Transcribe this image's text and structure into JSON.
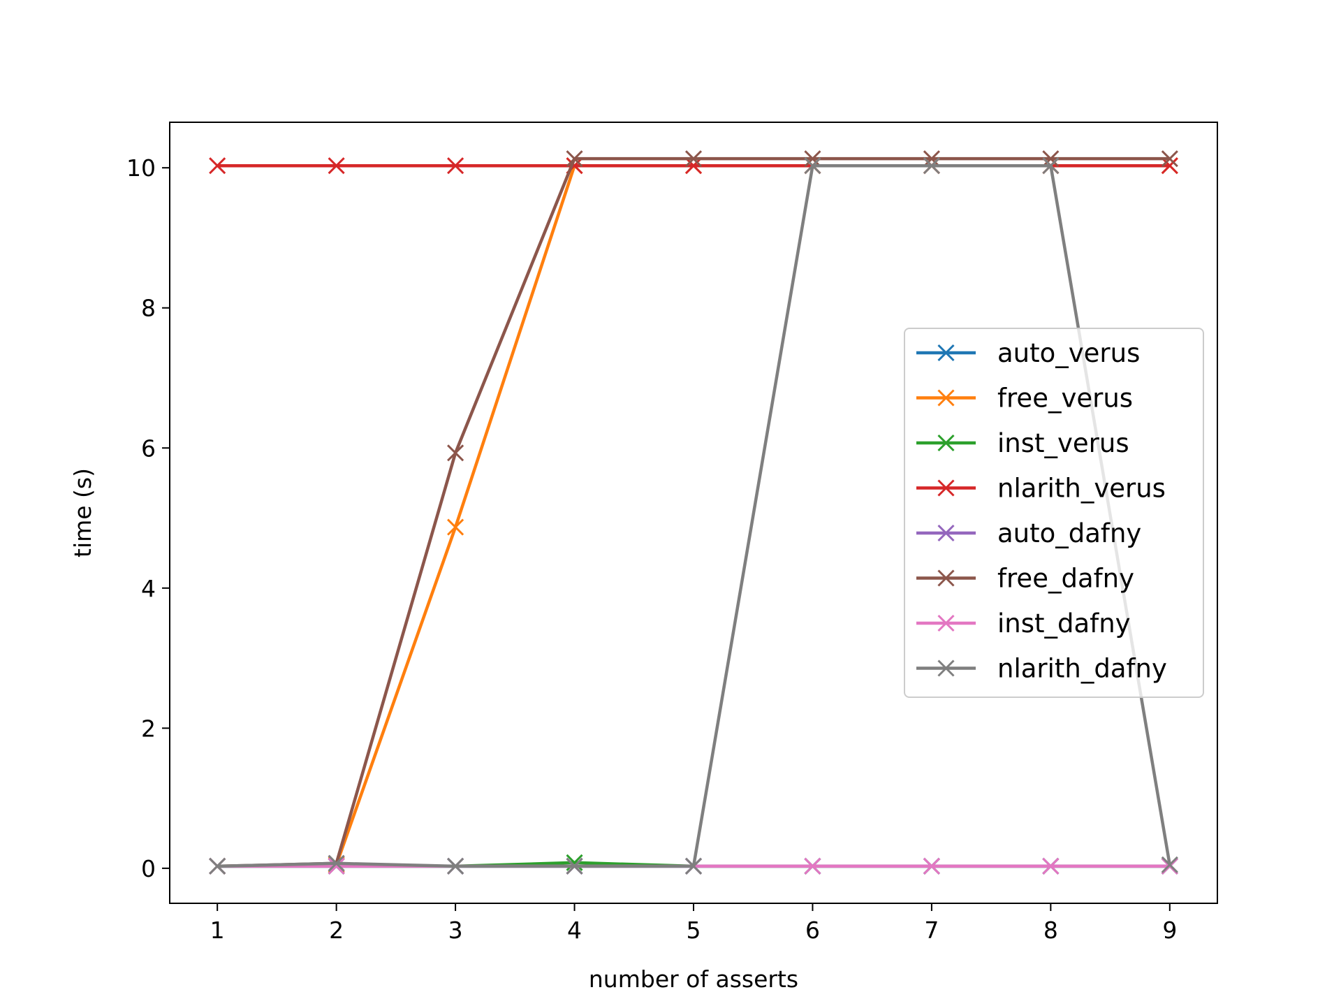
{
  "chart_data": {
    "type": "line",
    "title": "",
    "xlabel": "number of asserts",
    "ylabel": "time (s)",
    "x": [
      1,
      2,
      3,
      4,
      5,
      6,
      7,
      8,
      9
    ],
    "xticks": [
      "1",
      "2",
      "3",
      "4",
      "5",
      "6",
      "7",
      "8",
      "9"
    ],
    "yticks": [
      "0",
      "2",
      "4",
      "6",
      "8",
      "10"
    ],
    "xlim": [
      0.6,
      9.4
    ],
    "ylim": [
      -0.5,
      10.65
    ],
    "grid": false,
    "legend_position": "center-right",
    "marker": "x",
    "series": [
      {
        "name": "auto_verus",
        "color": "#1f77b4",
        "values": [
          0.03,
          0.03,
          0.03,
          0.03,
          0.03,
          0.03,
          0.03,
          0.03,
          0.03
        ]
      },
      {
        "name": "free_verus",
        "color": "#ff7f0e",
        "values": [
          0.03,
          0.05,
          4.87,
          10.03,
          10.03,
          10.03,
          10.03,
          10.03,
          10.03
        ]
      },
      {
        "name": "inst_verus",
        "color": "#2ca02c",
        "values": [
          0.03,
          0.03,
          0.03,
          0.08,
          0.03,
          0.03,
          0.03,
          0.03,
          0.03
        ]
      },
      {
        "name": "nlarith_verus",
        "color": "#d62728",
        "values": [
          10.03,
          10.03,
          10.03,
          10.03,
          10.03,
          10.03,
          10.03,
          10.03,
          10.03
        ]
      },
      {
        "name": "auto_dafny",
        "color": "#9467bd",
        "values": [
          0.03,
          0.03,
          0.03,
          0.03,
          0.03,
          0.03,
          0.03,
          0.03,
          0.03
        ]
      },
      {
        "name": "free_dafny",
        "color": "#8c564b",
        "values": [
          0.03,
          0.07,
          5.93,
          10.13,
          10.13,
          10.13,
          10.13,
          10.13,
          10.13
        ]
      },
      {
        "name": "inst_dafny",
        "color": "#e377c2",
        "values": [
          0.03,
          0.03,
          0.03,
          0.03,
          0.03,
          0.03,
          0.03,
          0.03,
          0.03
        ]
      },
      {
        "name": "nlarith_dafny",
        "color": "#7f7f7f",
        "values": [
          0.03,
          0.07,
          0.03,
          0.03,
          0.03,
          10.03,
          10.03,
          10.03,
          0.05
        ]
      }
    ]
  }
}
